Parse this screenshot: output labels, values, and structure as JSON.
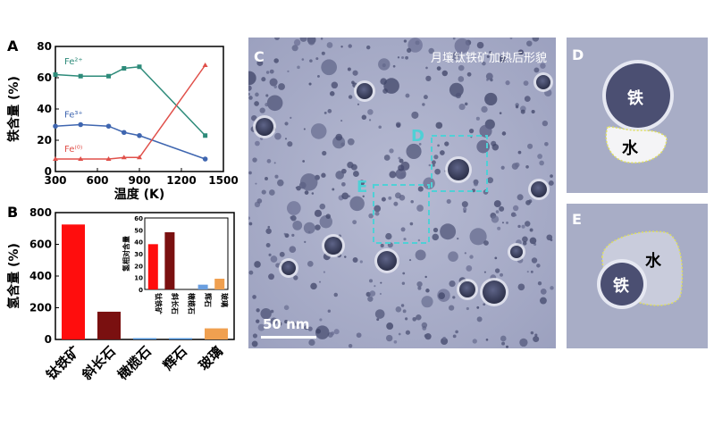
{
  "panels": {
    "a": "A",
    "b": "B",
    "c": "C",
    "d": "D",
    "e": "E"
  },
  "chart_data": [
    {
      "type": "line",
      "panel": "A",
      "xlabel": "温度 (K)",
      "ylabel": "铁含量 (%)",
      "xlim": [
        300,
        1500
      ],
      "ylim": [
        0,
        80
      ],
      "xticks": [
        300,
        600,
        900,
        1200,
        1500
      ],
      "yticks": [
        0,
        20,
        40,
        60,
        80
      ],
      "series": [
        {
          "name": "Fe²⁺",
          "color": "#2e8b7a",
          "x": [
            300,
            480,
            680,
            790,
            900,
            1370
          ],
          "y": [
            62,
            61,
            61,
            66,
            67,
            23
          ]
        },
        {
          "name": "Fe³⁺",
          "color": "#3f66b0",
          "x": [
            300,
            480,
            680,
            790,
            900,
            1370
          ],
          "y": [
            29,
            30,
            29,
            25,
            23,
            8
          ]
        },
        {
          "name": "Fe⁽⁰⁾",
          "color": "#e0504a",
          "x": [
            300,
            480,
            680,
            790,
            900,
            1370
          ],
          "y": [
            8,
            8,
            8,
            9,
            9,
            68
          ]
        }
      ]
    },
    {
      "type": "bar",
      "panel": "B",
      "ylabel": "氢含量 (%)",
      "ylim": [
        0,
        800
      ],
      "yticks": [
        0,
        200,
        400,
        600,
        800
      ],
      "categories": [
        "钛铁矿",
        "斜长石",
        "橄榄石",
        "辉石",
        "玻璃"
      ],
      "values": [
        725,
        175,
        8,
        8,
        70
      ],
      "colors": [
        "#ff0d0d",
        "#7a1010",
        "#4a90d9",
        "#4a90d9",
        "#f0a050"
      ]
    },
    {
      "type": "bar",
      "panel": "B-inset",
      "ylabel": "氢相对含量",
      "ylim": [
        0,
        60
      ],
      "yticks": [
        0,
        10,
        20,
        30,
        40,
        50,
        60
      ],
      "categories": [
        "钛铁矿",
        "斜长石",
        "橄榄石",
        "辉石",
        "玻璃"
      ],
      "values": [
        38,
        48,
        0,
        4,
        9
      ],
      "colors": [
        "#ff0d0d",
        "#7a1010",
        "#4a90d9",
        "#6a9fe0",
        "#f0a050"
      ]
    }
  ],
  "micrograph": {
    "title": "月壤钛铁矿加热后形貌",
    "scale_bar": "50 nm",
    "box_d": "D",
    "box_e": "E",
    "label_iron": "铁",
    "label_water": "水"
  }
}
